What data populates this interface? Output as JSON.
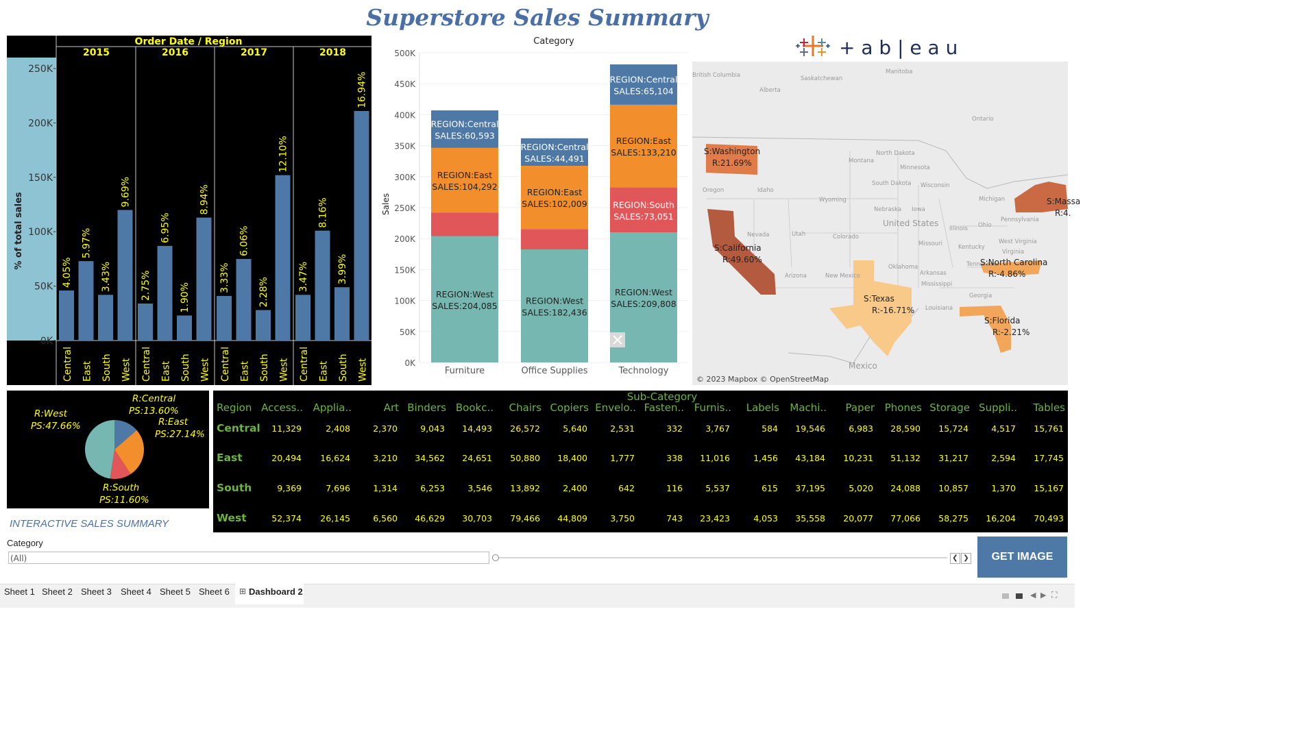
{
  "title": "Superstore Sales Summary",
  "colors": {
    "bar_blue": "#4e79a7",
    "central": "#4e79a7",
    "east": "#f28e2b",
    "south": "#e15759",
    "west": "#76b7b2",
    "yellow": "#ffff00",
    "green": "#6db33f",
    "title_blue": "#4a6fa5"
  },
  "sheet1": {
    "header_top": "Order Date / Region",
    "years": [
      "2015",
      "2016",
      "2017",
      "2018"
    ],
    "ylabel": "% of total sales",
    "yticks": [
      "250K",
      "200K",
      "150K",
      "100K",
      "50K",
      "0K"
    ]
  },
  "sheet2": {
    "header": "Category",
    "ylabel": "Sales",
    "yticks": [
      "500K",
      "450K",
      "400K",
      "350K",
      "300K",
      "250K",
      "200K",
      "150K",
      "100K",
      "50K",
      "0K"
    ],
    "categories": [
      "Furniture",
      "Office Supplies",
      "Technology"
    ]
  },
  "logo": {
    "wordmark": "+ a b | e a u"
  },
  "map": {
    "copyright": "© 2023 Mapbox © OpenStreetMap",
    "place_labels": [
      "British Columbia",
      "Alberta",
      "Saskatchewan",
      "Manitoba",
      "Ontario",
      "Montana",
      "North Dakota",
      "Minnesota",
      "South Dakota",
      "Wisconsin",
      "Michigan",
      "Wyoming",
      "Oregon",
      "Idaho",
      "Nevada",
      "Utah",
      "Colorado",
      "Nebraska",
      "Iowa",
      "Illinois",
      "Ohio",
      "Pennsylvania",
      "United States",
      "Missouri",
      "Kentucky",
      "West Virginia",
      "Virginia",
      "Oklahoma",
      "Tennessee",
      "Arizona",
      "New Mexico",
      "Arkansas",
      "Mississippi",
      "Georgia",
      "Louisiana",
      "Mexico"
    ],
    "state_labels": [
      {
        "state": "S:Washington",
        "ratio": "R:21.69%"
      },
      {
        "state": "S:California",
        "ratio": "R:49.60%"
      },
      {
        "state": "S:Texas",
        "ratio": "R:-16.71%"
      },
      {
        "state": "S:North Carolina",
        "ratio": "R:-4.86%"
      },
      {
        "state": "S:Florida",
        "ratio": "R:-2.21%"
      },
      {
        "state": "S:Massa",
        "ratio": "R:4."
      }
    ]
  },
  "pie": {
    "labels": [
      {
        "region": "R:Central",
        "share": "PS:13.60%"
      },
      {
        "region": "R:East",
        "share": "PS:27.14%"
      },
      {
        "region": "R:South",
        "share": "PS:11.60%"
      },
      {
        "region": "R:West",
        "share": "PS:47.66%"
      }
    ]
  },
  "table": {
    "super_header": "Sub-Category",
    "corner_header": "Region",
    "columns": [
      "Access..",
      "Applia..",
      "Art",
      "Binders",
      "Bookc..",
      "Chairs",
      "Copiers",
      "Envelo..",
      "Fasten..",
      "Furnis..",
      "Labels",
      "Machi..",
      "Paper",
      "Phones",
      "Storage",
      "Suppli..",
      "Tables"
    ],
    "rows": [
      {
        "region": "Central",
        "values": [
          "11,329",
          "2,408",
          "2,370",
          "9,043",
          "14,493",
          "26,572",
          "5,640",
          "2,531",
          "332",
          "3,767",
          "584",
          "19,546",
          "6,983",
          "28,590",
          "15,724",
          "4,517",
          "15,761"
        ]
      },
      {
        "region": "East",
        "values": [
          "20,494",
          "16,624",
          "3,210",
          "34,562",
          "24,651",
          "50,880",
          "18,400",
          "1,777",
          "338",
          "11,016",
          "1,456",
          "43,184",
          "10,231",
          "51,132",
          "31,217",
          "2,594",
          "17,745"
        ]
      },
      {
        "region": "South",
        "values": [
          "9,369",
          "7,696",
          "1,314",
          "6,253",
          "3,546",
          "13,892",
          "2,400",
          "642",
          "116",
          "5,537",
          "615",
          "37,195",
          "5,020",
          "24,088",
          "10,857",
          "1,370",
          "15,167"
        ]
      },
      {
        "region": "West",
        "values": [
          "52,374",
          "26,145",
          "6,560",
          "46,629",
          "30,703",
          "79,466",
          "44,809",
          "3,750",
          "743",
          "23,423",
          "4,053",
          "35,558",
          "20,077",
          "77,066",
          "58,275",
          "16,204",
          "70,493"
        ]
      }
    ]
  },
  "interactive_label": "INTERACTIVE SALES SUMMARY",
  "filter": {
    "label": "Category",
    "value": "(All)"
  },
  "get_image_label": "GET IMAGE",
  "sheet_tabs": [
    "Sheet 1",
    "Sheet 2",
    "Sheet 3",
    "Sheet 4",
    "Sheet 5",
    "Sheet 6",
    "Dashboard 2"
  ],
  "chart_data": [
    {
      "type": "bar",
      "title": "",
      "header": "Order Date / Region",
      "ylabel": "% of total sales",
      "ylim": [
        0,
        260000
      ],
      "grid": false,
      "groups": [
        {
          "year": "2015",
          "regions": [
            "Central",
            "East",
            "South",
            "West"
          ],
          "values": [
            46000,
            73000,
            42000,
            120000
          ],
          "labels": [
            "4.05%",
            "5.97%",
            "3.43%",
            "9.69%"
          ]
        },
        {
          "year": "2016",
          "regions": [
            "Central",
            "East",
            "South",
            "West"
          ],
          "values": [
            34000,
            87000,
            23000,
            113000
          ],
          "labels": [
            "2.75%",
            "6.95%",
            "1.90%",
            "8.94%"
          ]
        },
        {
          "year": "2017",
          "regions": [
            "Central",
            "East",
            "South",
            "West"
          ],
          "values": [
            41000,
            75000,
            28000,
            152000
          ],
          "labels": [
            "3.33%",
            "6.06%",
            "2.28%",
            "12.10%"
          ]
        },
        {
          "year": "2018",
          "regions": [
            "Central",
            "East",
            "South",
            "West"
          ],
          "values": [
            42000,
            101000,
            49000,
            211000
          ],
          "labels": [
            "3.47%",
            "8.16%",
            "3.99%",
            "16.94%"
          ]
        }
      ]
    },
    {
      "type": "bar",
      "stacked": true,
      "title": "",
      "header": "Category",
      "ylabel": "Sales",
      "ylim": [
        0,
        500000
      ],
      "grid": true,
      "categories": [
        "Furniture",
        "Office Supplies",
        "Technology"
      ],
      "series": [
        {
          "name": "West",
          "values": [
            204085,
            182436,
            209808
          ],
          "labels": [
            "REGION:West\nSALES:204,085",
            "REGION:West\nSALES:182,436",
            "REGION:West\nSALES:209,808"
          ]
        },
        {
          "name": "South",
          "values": [
            38000,
            33000,
            73051
          ],
          "labels": [
            "",
            "",
            "REGION:South\nSALES:73,051"
          ]
        },
        {
          "name": "East",
          "values": [
            104292,
            102009,
            133210
          ],
          "labels": [
            "REGION:East\nSALES:104,292",
            "REGION:East\nSALES:102,009",
            "REGION:East\nSALES:133,210"
          ]
        },
        {
          "name": "Central",
          "values": [
            60593,
            44491,
            65104
          ],
          "labels": [
            "REGION:Central\nSALES:60,593",
            "REGION:Central\nSALES:44,491",
            "REGION:Central\nSALES:65,104"
          ]
        }
      ]
    },
    {
      "type": "pie",
      "title": "",
      "slices": [
        {
          "name": "Central",
          "value": 13.6
        },
        {
          "name": "East",
          "value": 27.14
        },
        {
          "name": "South",
          "value": 11.6
        },
        {
          "name": "West",
          "value": 47.66
        }
      ]
    }
  ]
}
